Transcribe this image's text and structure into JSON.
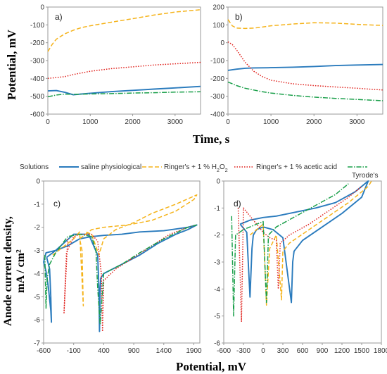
{
  "figure": {
    "top_ylabel": "Potential, mV",
    "top_xlabel": "Time, s",
    "bottom_ylabel_line1": "Anode current density,",
    "bottom_ylabel_line2": "mA / cm²",
    "bottom_xlabel": "Potential, mV"
  },
  "legend": {
    "title": "Solutions",
    "items": [
      {
        "label": "saline physiological",
        "color": "#2a7bbd",
        "dash": "solid"
      },
      {
        "label": "Ringer's + 1 % H2O2",
        "color": "#f5b31a",
        "dash": "dashed"
      },
      {
        "label": "Ringer's + 1 % acetic acid",
        "color": "#e0201b",
        "dash": "dotted"
      },
      {
        "label": "Tyrode's",
        "color": "#1a9f4a",
        "dash": "dashdot"
      }
    ]
  },
  "chart_data": [
    {
      "id": "a",
      "type": "line",
      "panel_label": "a)",
      "xlim": [
        0,
        3600
      ],
      "ylim": [
        -600,
        0
      ],
      "xticks": [
        0,
        1000,
        2000,
        3000
      ],
      "yticks": [
        0,
        -100,
        -200,
        -300,
        -400,
        -500,
        -600
      ],
      "series": [
        {
          "name": "saline physiological",
          "x": [
            0,
            200,
            400,
            600,
            800,
            1000,
            1500,
            2000,
            2500,
            3000,
            3600
          ],
          "y": [
            -470,
            -468,
            -478,
            -492,
            -487,
            -483,
            -474,
            -467,
            -460,
            -453,
            -445
          ]
        },
        {
          "name": "Ringer's + 1 % H2O2",
          "x": [
            0,
            100,
            200,
            400,
            600,
            800,
            1000,
            1500,
            2000,
            2500,
            3000,
            3600
          ],
          "y": [
            -250,
            -210,
            -180,
            -150,
            -130,
            -115,
            -105,
            -85,
            -65,
            -45,
            -28,
            -15
          ]
        },
        {
          "name": "Ringer's + 1 % acetic acid",
          "x": [
            0,
            200,
            400,
            600,
            1000,
            1500,
            2000,
            2500,
            3000,
            3600
          ],
          "y": [
            -400,
            -395,
            -390,
            -378,
            -360,
            -345,
            -335,
            -325,
            -318,
            -310
          ]
        },
        {
          "name": "Tyrode's",
          "x": [
            0,
            200,
            400,
            600,
            800,
            1000,
            1500,
            2000,
            2500,
            3000,
            3600
          ],
          "y": [
            -503,
            -493,
            -488,
            -489,
            -488,
            -487,
            -485,
            -482,
            -480,
            -477,
            -475
          ]
        }
      ]
    },
    {
      "id": "b",
      "type": "line",
      "panel_label": "b)",
      "xlim": [
        0,
        3600
      ],
      "ylim": [
        -400,
        200
      ],
      "xticks": [
        0,
        1000,
        2000,
        3000
      ],
      "yticks": [
        200,
        100,
        0,
        -100,
        -200,
        -300,
        -400
      ],
      "series": [
        {
          "name": "saline physiological",
          "x": [
            0,
            200,
            400,
            600,
            1000,
            1500,
            2000,
            2500,
            3000,
            3600
          ],
          "y": [
            -155,
            -148,
            -143,
            -141,
            -140,
            -137,
            -133,
            -128,
            -125,
            -122
          ]
        },
        {
          "name": "Ringer's + 1 % H2O2",
          "x": [
            0,
            100,
            200,
            400,
            600,
            800,
            1000,
            1500,
            2000,
            2500,
            3000,
            3600
          ],
          "y": [
            130,
            95,
            82,
            80,
            82,
            88,
            95,
            105,
            112,
            110,
            103,
            97
          ]
        },
        {
          "name": "Ringer's + 1 % acetic acid",
          "x": [
            0,
            100,
            200,
            400,
            600,
            800,
            1000,
            1500,
            2000,
            2500,
            3000,
            3600
          ],
          "y": [
            5,
            -10,
            -40,
            -110,
            -160,
            -190,
            -210,
            -230,
            -240,
            -248,
            -255,
            -265
          ]
        },
        {
          "name": "Tyrode's",
          "x": [
            0,
            200,
            400,
            600,
            800,
            1000,
            1500,
            2000,
            2500,
            3000,
            3600
          ],
          "y": [
            -220,
            -240,
            -255,
            -265,
            -275,
            -282,
            -295,
            -305,
            -312,
            -318,
            -325
          ]
        }
      ]
    },
    {
      "id": "c",
      "type": "line",
      "panel_label": "c)",
      "xlim": [
        -600,
        2000
      ],
      "ylim": [
        -7,
        0
      ],
      "xticks": [
        -600,
        -100,
        400,
        900,
        1400,
        1900
      ],
      "yticks": [
        0,
        -1,
        -2,
        -3,
        -4,
        -5,
        -6,
        -7
      ],
      "series": [
        {
          "name": "saline physiological",
          "x": [
            -550,
            -500,
            -480,
            -470,
            -480,
            -520,
            -560,
            -600,
            -560,
            -400,
            -100,
            150,
            300,
            320,
            330,
            340,
            350,
            400,
            700,
            1000,
            1300,
            1600,
            1800,
            1950,
            1800,
            1400,
            1000,
            700,
            400,
            200,
            0,
            -200,
            -400,
            -550
          ],
          "y": [
            -3.3,
            -3.8,
            -5,
            -6.1,
            -5.6,
            -4.6,
            -3.9,
            -3.5,
            -3.1,
            -3.0,
            -2.3,
            -2.3,
            -3.2,
            -4.6,
            -6.5,
            -4.8,
            -4.2,
            -4.0,
            -3.6,
            -3.2,
            -2.7,
            -2.3,
            -2.1,
            -1.9,
            -2.0,
            -2.15,
            -2.2,
            -2.3,
            -2.35,
            -2.4,
            -2.5,
            -2.8,
            -3.0,
            -3.3
          ]
        },
        {
          "name": "Ringer's + 1 % H2O2",
          "x": [
            -450,
            -300,
            -100,
            0,
            60,
            40,
            0,
            200,
            400,
            800,
            1200,
            1600,
            1900,
            1950,
            1600,
            1200,
            900,
            600,
            400,
            320,
            200,
            100
          ],
          "y": [
            -3.2,
            -2.9,
            -2.5,
            -2.2,
            -5.4,
            -3.0,
            -2.5,
            -2.1,
            -2.0,
            -1.9,
            -1.7,
            -1.3,
            -0.8,
            -0.6,
            -1.0,
            -1.4,
            -1.8,
            -2.1,
            -2.5,
            -3.2,
            -2.3,
            -2.2
          ]
        },
        {
          "name": "Ringer's + 1 % acetic acid",
          "x": [
            -200,
            -260,
            -220,
            -150,
            -100,
            0,
            200,
            300,
            360,
            380,
            400,
            600,
            900,
            1200,
            1500,
            1800,
            1950
          ],
          "y": [
            -2.5,
            -5.7,
            -3.1,
            -2.7,
            -2.4,
            -2.3,
            -2.3,
            -2.6,
            -4.0,
            -6.5,
            -4.3,
            -3.8,
            -3.3,
            -2.8,
            -2.3,
            -2.0,
            -1.9
          ]
        },
        {
          "name": "Tyrode's",
          "x": [
            -580,
            -560,
            -540,
            -500,
            -400,
            -200,
            0,
            200,
            270,
            300,
            340,
            400,
            700,
            1000,
            1400,
            1800,
            1950
          ],
          "y": [
            -3.2,
            -5.5,
            -4.2,
            -3.6,
            -3.1,
            -2.4,
            -2.3,
            -2.4,
            -3.0,
            -4.6,
            -6.2,
            -4.0,
            -3.6,
            -3.1,
            -2.5,
            -2.0,
            -1.9
          ]
        }
      ]
    },
    {
      "id": "d",
      "type": "line",
      "panel_label": "d)",
      "xlim": [
        -600,
        1800
      ],
      "ylim": [
        -6,
        0
      ],
      "xticks": [
        -600,
        -300,
        0,
        300,
        600,
        900,
        1200,
        1500,
        1800
      ],
      "yticks": [
        0,
        -1,
        -2,
        -3,
        -4,
        -5,
        -6
      ],
      "series": [
        {
          "name": "saline physiological",
          "x": [
            -350,
            -250,
            -200,
            -170,
            -150,
            -100,
            0,
            150,
            300,
            430,
            450,
            470,
            600,
            900,
            1200,
            1500,
            1600,
            1400,
            1100,
            800,
            500,
            200,
            0,
            -200,
            -350
          ],
          "y": [
            -1.6,
            -1.9,
            -4.3,
            -2.5,
            -2.0,
            -1.8,
            -1.7,
            -1.8,
            -2.1,
            -4.5,
            -3.0,
            -2.6,
            -2.2,
            -1.7,
            -1.2,
            -0.6,
            0.0,
            -0.4,
            -0.8,
            -1.0,
            -1.15,
            -1.3,
            -1.35,
            -1.45,
            -1.6
          ]
        },
        {
          "name": "Ringer's + 1 % H2O2",
          "x": [
            -200,
            -100,
            0,
            50,
            100,
            200,
            280,
            300,
            400,
            700,
            1000,
            1300,
            1600,
            1650
          ],
          "y": [
            -2.0,
            -1.8,
            -1.6,
            -4.6,
            -2.5,
            -2.0,
            -4.4,
            -2.6,
            -2.3,
            -1.8,
            -1.3,
            -0.8,
            -0.2,
            0.0
          ]
        },
        {
          "name": "Ringer's + 1 % acetic acid",
          "x": [
            -380,
            -330,
            -300,
            -200,
            -100,
            0,
            100,
            200,
            230,
            260,
            400,
            700,
            1000,
            1300,
            1500
          ],
          "y": [
            -1.0,
            -5.2,
            -1.0,
            -1.3,
            -1.6,
            -1.9,
            -2.1,
            -2.2,
            -4.0,
            -2.3,
            -2.0,
            -1.6,
            -1.1,
            -0.6,
            -0.2
          ]
        },
        {
          "name": "Tyrode's",
          "x": [
            -480,
            -450,
            -420,
            -300,
            -100,
            0,
            50,
            80,
            200,
            500,
            800,
            1100,
            1300
          ],
          "y": [
            -1.3,
            -5.0,
            -2.0,
            -1.8,
            -1.6,
            -1.5,
            -4.5,
            -2.0,
            -1.7,
            -1.3,
            -0.9,
            -0.5,
            -0.1
          ]
        }
      ]
    }
  ]
}
